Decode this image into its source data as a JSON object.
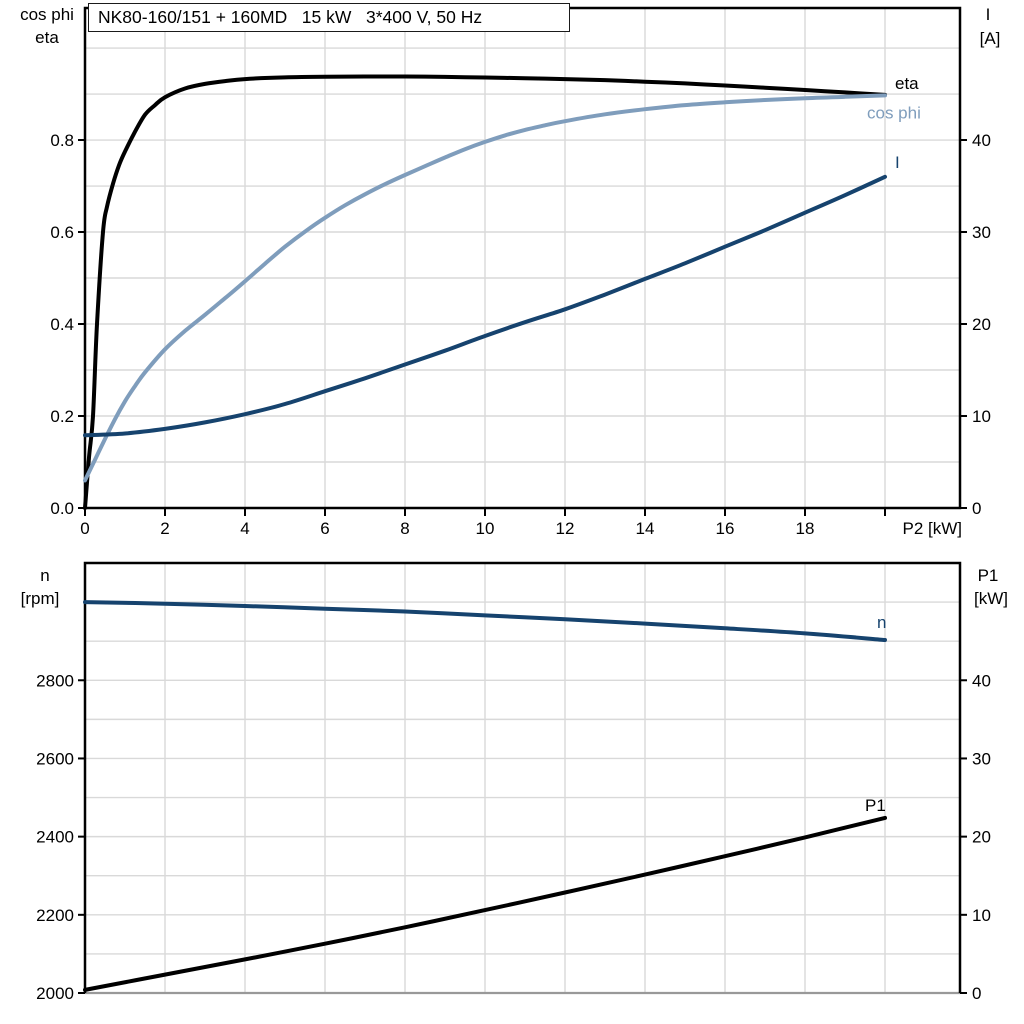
{
  "title": "NK80-160/151 + 160MD   15 kW   3*400 V, 50 Hz",
  "colors": {
    "black": "#000000",
    "light_blue": "#7f9dbc",
    "dark_blue": "#16436e",
    "grid": "#d9d9d9",
    "frame": "#000000",
    "baseline_gray": "#999999",
    "background": "#ffffff"
  },
  "chart_data": [
    {
      "type": "line",
      "title": "NK80-160/151 + 160MD   15 kW   3*400 V, 50 Hz",
      "x": {
        "label": "P2 [kW]",
        "min": 0,
        "max": 21.875,
        "grid_step": 2,
        "tick_step": 2,
        "labeled_tick_max": 18,
        "show_tick_labels": true
      },
      "y_left": {
        "label_lines": [
          "cos phi",
          "eta"
        ],
        "min": 0,
        "max": 1.087,
        "grid_step": 0.1,
        "ticks": [
          0,
          0.2,
          0.4,
          0.6,
          0.8
        ],
        "decimals": 1
      },
      "y_right": {
        "label_lines": [
          "I",
          "[A]"
        ],
        "min": 0,
        "max": 54.35,
        "ticks": [
          0,
          10,
          20,
          30,
          40
        ],
        "decimals": 0
      },
      "series": [
        {
          "name": "eta",
          "label": "eta",
          "axis": "left",
          "color_key": "black",
          "points": [
            [
              0,
              0
            ],
            [
              0.1,
              0.11
            ],
            [
              0.2,
              0.2
            ],
            [
              0.3,
              0.4
            ],
            [
              0.45,
              0.6
            ],
            [
              0.55,
              0.655
            ],
            [
              0.7,
              0.705
            ],
            [
              0.85,
              0.745
            ],
            [
              1,
              0.775
            ],
            [
              1.25,
              0.818
            ],
            [
              1.5,
              0.855
            ],
            [
              1.75,
              0.876
            ],
            [
              2,
              0.893
            ],
            [
              2.5,
              0.912
            ],
            [
              3,
              0.922
            ],
            [
              3.5,
              0.928
            ],
            [
              4,
              0.9325
            ],
            [
              5,
              0.9362
            ],
            [
              6,
              0.9375
            ],
            [
              7,
              0.938
            ],
            [
              8,
              0.938
            ],
            [
              9,
              0.9372
            ],
            [
              10,
              0.9358
            ],
            [
              11,
              0.9343
            ],
            [
              12,
              0.9325
            ],
            [
              13,
              0.9302
            ],
            [
              14,
              0.9268
            ],
            [
              15,
              0.923
            ],
            [
              16,
              0.9185
            ],
            [
              17,
              0.9138
            ],
            [
              18,
              0.9088
            ],
            [
              19,
              0.9035
            ],
            [
              20,
              0.898
            ]
          ]
        },
        {
          "name": "cos_phi",
          "label": "cos phi",
          "axis": "left",
          "color_key": "light_blue",
          "points": [
            [
              0,
              0.06
            ],
            [
              0.25,
              0.105
            ],
            [
              0.5,
              0.15
            ],
            [
              0.75,
              0.193
            ],
            [
              1,
              0.232
            ],
            [
              1.25,
              0.265
            ],
            [
              1.5,
              0.295
            ],
            [
              2,
              0.345
            ],
            [
              2.5,
              0.385
            ],
            [
              3,
              0.42
            ],
            [
              3.5,
              0.456
            ],
            [
              4,
              0.493
            ],
            [
              4.5,
              0.531
            ],
            [
              5,
              0.568
            ],
            [
              5.5,
              0.601
            ],
            [
              6,
              0.631
            ],
            [
              6.5,
              0.658
            ],
            [
              7,
              0.682
            ],
            [
              7.5,
              0.704
            ],
            [
              8,
              0.724
            ],
            [
              8.5,
              0.743
            ],
            [
              9,
              0.762
            ],
            [
              9.5,
              0.78
            ],
            [
              10,
              0.796
            ],
            [
              10.5,
              0.81
            ],
            [
              11,
              0.822
            ],
            [
              11.5,
              0.832
            ],
            [
              12,
              0.841
            ],
            [
              13,
              0.856
            ],
            [
              14,
              0.867
            ],
            [
              15,
              0.876
            ],
            [
              16,
              0.882
            ],
            [
              17,
              0.887
            ],
            [
              18,
              0.891
            ],
            [
              19,
              0.894
            ],
            [
              20,
              0.897
            ]
          ]
        },
        {
          "name": "I",
          "label": "I",
          "axis": "right",
          "color_key": "dark_blue",
          "points": [
            [
              0,
              7.9
            ],
            [
              1,
              8.1
            ],
            [
              2,
              8.6
            ],
            [
              3,
              9.3
            ],
            [
              4,
              10.2
            ],
            [
              5,
              11.3
            ],
            [
              6,
              12.7
            ],
            [
              7,
              14.1
            ],
            [
              8,
              15.6
            ],
            [
              9,
              17.1
            ],
            [
              10,
              18.7
            ],
            [
              11,
              20.2
            ],
            [
              12,
              21.6
            ],
            [
              13,
              23.2
            ],
            [
              14,
              24.9
            ],
            [
              15,
              26.6
            ],
            [
              16,
              28.4
            ],
            [
              17,
              30.2
            ],
            [
              18,
              32.1
            ],
            [
              19,
              34
            ],
            [
              20,
              36
            ]
          ]
        }
      ]
    },
    {
      "type": "line",
      "x": {
        "label": "",
        "min": 0,
        "max": 21.875,
        "grid_step": 2,
        "tick_step": 2,
        "show_tick_labels": false
      },
      "y_left": {
        "label_lines": [
          "n",
          "[rpm]"
        ],
        "min": 2000,
        "max": 3100,
        "grid_step": 100,
        "ticks": [
          2000,
          2200,
          2400,
          2600,
          2800
        ],
        "decimals": 0
      },
      "y_right": {
        "label_lines": [
          "P1",
          "[kW]"
        ],
        "min": 0,
        "max": 55,
        "ticks": [
          0,
          10,
          20,
          30,
          40
        ],
        "decimals": 0
      },
      "series": [
        {
          "name": "n",
          "label": "n",
          "axis": "left",
          "color_key": "dark_blue",
          "points": [
            [
              0,
              3000
            ],
            [
              2,
              2996
            ],
            [
              4,
              2990
            ],
            [
              6,
              2983
            ],
            [
              8,
              2976
            ],
            [
              10,
              2966
            ],
            [
              12,
              2956
            ],
            [
              14,
              2945
            ],
            [
              16,
              2933
            ],
            [
              18,
              2920
            ],
            [
              20,
              2903
            ]
          ]
        },
        {
          "name": "P1",
          "label": "P1",
          "axis": "right",
          "color_key": "black",
          "points": [
            [
              0,
              0.4
            ],
            [
              2,
              2.35
            ],
            [
              4,
              4.3
            ],
            [
              6,
              6.3
            ],
            [
              8,
              8.4
            ],
            [
              10,
              10.6
            ],
            [
              12,
              12.85
            ],
            [
              14,
              15.15
            ],
            [
              16,
              17.5
            ],
            [
              18,
              19.9
            ],
            [
              20,
              22.4
            ]
          ]
        }
      ]
    }
  ]
}
